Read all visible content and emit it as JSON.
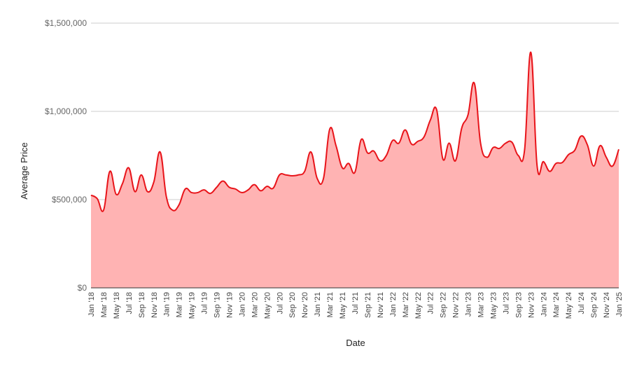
{
  "chart_data": {
    "type": "area",
    "title": "",
    "xlabel": "Date",
    "ylabel": "Average Price",
    "ylim": [
      0,
      1500000
    ],
    "y_ticks": [
      0,
      500000,
      1000000,
      1500000
    ],
    "y_tick_labels": [
      "$0",
      "$500,000",
      "$1,000,000",
      "$1,500,000"
    ],
    "grid": true,
    "legend": "none",
    "x_tick_labels": [
      "Jan '18",
      "Mar '18",
      "May '18",
      "Jul '18",
      "Sep '18",
      "Nov '18",
      "Jan '19",
      "Mar '19",
      "May '19",
      "Jul '19",
      "Sep '19",
      "Nov '19",
      "Jan '20",
      "Mar '20",
      "May '20",
      "Jul '20",
      "Sep '20",
      "Nov '20",
      "Jan '21",
      "Mar '21",
      "May '21",
      "Jul '21",
      "Sep '21",
      "Nov '21",
      "Jan '22",
      "Mar '22",
      "May '22",
      "Jul '22",
      "Sep '22",
      "Nov '22",
      "Jan '23",
      "Mar '23",
      "May '23",
      "Jul '23",
      "Sep '23",
      "Nov '23",
      "Jan '24",
      "Mar '24",
      "May '24",
      "Jul '24",
      "Sep '24",
      "Nov '24",
      "Jan '25"
    ],
    "colors": {
      "line": "#e8141a",
      "fill": "#ffb3b3",
      "grid": "#cccccc"
    },
    "series": [
      {
        "x": [
          "2018-01",
          "2018-02",
          "2018-03",
          "2018-04",
          "2018-05",
          "2018-06",
          "2018-07",
          "2018-08",
          "2018-09",
          "2018-10",
          "2018-11",
          "2018-12",
          "2019-01",
          "2019-02",
          "2019-03",
          "2019-04",
          "2019-05",
          "2019-06",
          "2019-07",
          "2019-08",
          "2019-09",
          "2019-10",
          "2019-11",
          "2019-12",
          "2020-01",
          "2020-02",
          "2020-03",
          "2020-04",
          "2020-05",
          "2020-06",
          "2020-07",
          "2020-08",
          "2020-09",
          "2020-10",
          "2020-11",
          "2020-12",
          "2021-01",
          "2021-02",
          "2021-03",
          "2021-04",
          "2021-05",
          "2021-06",
          "2021-07",
          "2021-08",
          "2021-09",
          "2021-10",
          "2021-11",
          "2021-12",
          "2022-01",
          "2022-02",
          "2022-03",
          "2022-04",
          "2022-05",
          "2022-06",
          "2022-07",
          "2022-08",
          "2022-09",
          "2022-10",
          "2022-11",
          "2022-12",
          "2023-01",
          "2023-02",
          "2023-03",
          "2023-04",
          "2023-05",
          "2023-06",
          "2023-07",
          "2023-08",
          "2023-09",
          "2023-10",
          "2023-11",
          "2023-12",
          "2024-01",
          "2024-02",
          "2024-03",
          "2024-04",
          "2024-05",
          "2024-06",
          "2024-07",
          "2024-08",
          "2024-09",
          "2024-10",
          "2024-11",
          "2024-12",
          "2025-01"
        ],
        "values": [
          525000,
          505000,
          440000,
          660000,
          530000,
          590000,
          680000,
          545000,
          640000,
          545000,
          600000,
          770000,
          515000,
          440000,
          470000,
          560000,
          540000,
          540000,
          555000,
          535000,
          570000,
          605000,
          570000,
          560000,
          540000,
          555000,
          585000,
          550000,
          575000,
          565000,
          640000,
          640000,
          635000,
          640000,
          660000,
          770000,
          620000,
          620000,
          900000,
          805000,
          680000,
          705000,
          655000,
          840000,
          765000,
          775000,
          720000,
          750000,
          835000,
          820000,
          895000,
          815000,
          830000,
          855000,
          950000,
          1010000,
          730000,
          820000,
          720000,
          905000,
          980000,
          1160000,
          820000,
          740000,
          795000,
          790000,
          820000,
          825000,
          750000,
          780000,
          1335000,
          690000,
          715000,
          660000,
          705000,
          710000,
          755000,
          780000,
          860000,
          810000,
          690000,
          805000,
          740000,
          690000,
          785000
        ]
      }
    ]
  }
}
